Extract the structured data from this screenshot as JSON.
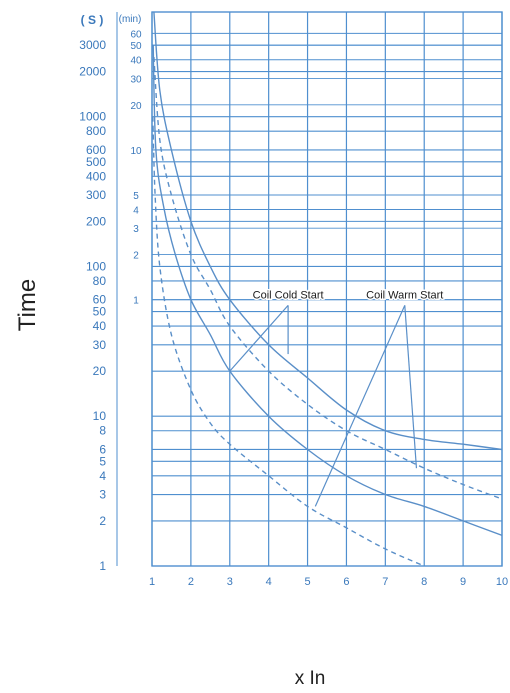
{
  "chart_data": {
    "type": "line",
    "title": "",
    "xlabel": "x In",
    "ylabel": "Time",
    "xscale": "linear",
    "yscale": "log",
    "xlim": [
      1,
      10
    ],
    "ylim": [
      1,
      5000
    ],
    "grid": true,
    "colors": {
      "grid": "#4f8fcf",
      "curve": "#5a8fc8",
      "tick": "#3a78bb",
      "background": "#ffffff"
    },
    "x_ticks": [
      "1",
      "2",
      "3",
      "4",
      "5",
      "6",
      "7",
      "8",
      "9",
      "10"
    ],
    "y_unit_seconds": "( S )",
    "y_unit_minutes": "(min)",
    "y_ticks_seconds": [
      {
        "label": "3000",
        "value": 3000
      },
      {
        "label": "2000",
        "value": 2000
      },
      {
        "label": "1000",
        "value": 1000
      },
      {
        "label": "800",
        "value": 800
      },
      {
        "label": "600",
        "value": 600
      },
      {
        "label": "500",
        "value": 500
      },
      {
        "label": "400",
        "value": 400
      },
      {
        "label": "300",
        "value": 300
      },
      {
        "label": "200",
        "value": 200
      },
      {
        "label": "100",
        "value": 100
      },
      {
        "label": "80",
        "value": 80
      },
      {
        "label": "60",
        "value": 60
      },
      {
        "label": "50",
        "value": 50
      },
      {
        "label": "40",
        "value": 40
      },
      {
        "label": "30",
        "value": 30
      },
      {
        "label": "20",
        "value": 20
      },
      {
        "label": "10",
        "value": 10
      },
      {
        "label": "8",
        "value": 8
      },
      {
        "label": "6",
        "value": 6
      },
      {
        "label": "5",
        "value": 5
      },
      {
        "label": "4",
        "value": 4
      },
      {
        "label": "3",
        "value": 3
      },
      {
        "label": "2",
        "value": 2
      },
      {
        "label": "1",
        "value": 1
      }
    ],
    "y_ticks_minutes": [
      {
        "label": "60",
        "value": 3600
      },
      {
        "label": "50",
        "value": 3000
      },
      {
        "label": "40",
        "value": 2400
      },
      {
        "label": "30",
        "value": 1800
      },
      {
        "label": "20",
        "value": 1200
      },
      {
        "label": "10",
        "value": 600
      },
      {
        "label": "5",
        "value": 300
      },
      {
        "label": "4",
        "value": 240
      },
      {
        "label": "3",
        "value": 180
      },
      {
        "label": "2",
        "value": 120
      },
      {
        "label": "1",
        "value": 60
      }
    ],
    "series": [
      {
        "dashed": false,
        "x": [
          1.05,
          1.2,
          1.5,
          2,
          2.5,
          3,
          4,
          5,
          6,
          7,
          8,
          9,
          10
        ],
        "y": [
          5000,
          1500,
          600,
          200,
          100,
          60,
          30,
          18,
          11,
          8,
          7,
          6.5,
          6
        ]
      },
      {
        "dashed": false,
        "x": [
          1.03,
          1.1,
          1.3,
          1.6,
          2,
          2.5,
          3,
          4,
          5,
          6,
          7,
          8,
          9,
          10
        ],
        "y": [
          3000,
          600,
          250,
          120,
          60,
          35,
          20,
          10,
          6,
          4,
          3,
          2.5,
          2,
          1.6
        ]
      },
      {
        "dashed": true,
        "x": [
          1.05,
          1.2,
          1.5,
          2,
          2.5,
          3,
          4,
          5,
          6,
          7,
          8,
          9,
          10
        ],
        "y": [
          2500,
          700,
          300,
          120,
          70,
          40,
          20,
          12,
          8,
          6,
          4.5,
          3.5,
          2.8
        ]
      },
      {
        "dashed": true,
        "x": [
          1.02,
          1.08,
          1.2,
          1.5,
          2,
          2.5,
          3,
          4,
          5,
          6,
          7,
          8
        ],
        "y": [
          1000,
          300,
          100,
          35,
          15,
          9,
          6.5,
          4,
          2.5,
          1.8,
          1.3,
          1
        ]
      }
    ],
    "annotations": [
      {
        "text": "Coil Cold Start",
        "anchor": [
          4.5,
          55
        ],
        "targets": [
          [
            3,
            20
          ],
          [
            4.5,
            26
          ]
        ]
      },
      {
        "text": "Coil Warm Start",
        "anchor": [
          7.5,
          55
        ],
        "targets": [
          [
            5.2,
            2.5
          ],
          [
            7.8,
            4.5
          ]
        ]
      }
    ]
  }
}
